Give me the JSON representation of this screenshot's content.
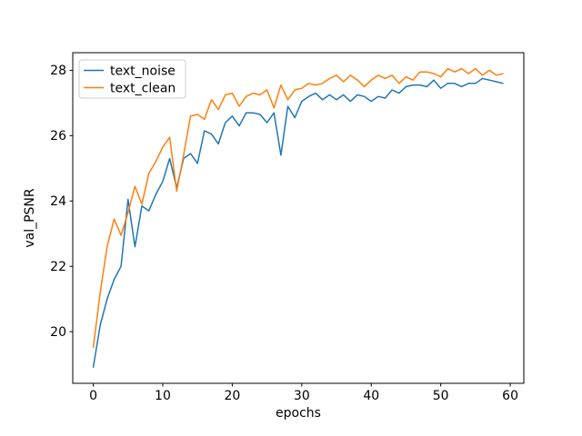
{
  "window": {
    "background": "#ffffff"
  },
  "chart_data": {
    "type": "line",
    "title": "",
    "xlabel": "epochs",
    "ylabel": "val_PSNR",
    "xlim": [
      -2.95,
      61.95
    ],
    "ylim": [
      18.42,
      28.54
    ],
    "xticks": [
      0,
      10,
      20,
      30,
      40,
      50,
      60
    ],
    "yticks": [
      20,
      22,
      24,
      26,
      28
    ],
    "grid": false,
    "legend_position": "upper left",
    "x": [
      0,
      1,
      2,
      3,
      4,
      5,
      6,
      7,
      8,
      9,
      10,
      11,
      12,
      13,
      14,
      15,
      16,
      17,
      18,
      19,
      20,
      21,
      22,
      23,
      24,
      25,
      26,
      27,
      28,
      29,
      30,
      31,
      32,
      33,
      34,
      35,
      36,
      37,
      38,
      39,
      40,
      41,
      42,
      43,
      44,
      45,
      46,
      47,
      48,
      49,
      50,
      51,
      52,
      53,
      54,
      55,
      56,
      57,
      58,
      59
    ],
    "series": [
      {
        "name": "text_noise",
        "color": "#1f77b4",
        "values": [
          18.9,
          20.2,
          21.0,
          21.6,
          22.0,
          24.05,
          22.6,
          23.85,
          23.7,
          24.2,
          24.6,
          25.3,
          24.4,
          25.3,
          25.45,
          25.15,
          26.15,
          26.05,
          25.75,
          26.4,
          26.6,
          26.3,
          26.7,
          26.7,
          26.65,
          26.4,
          26.7,
          25.4,
          26.9,
          26.55,
          27.05,
          27.2,
          27.3,
          27.1,
          27.25,
          27.1,
          27.25,
          27.05,
          27.25,
          27.2,
          27.05,
          27.2,
          27.15,
          27.4,
          27.3,
          27.5,
          27.55,
          27.55,
          27.5,
          27.7,
          27.45,
          27.6,
          27.6,
          27.5,
          27.6,
          27.6,
          27.75,
          27.7,
          27.65,
          27.6
        ]
      },
      {
        "name": "text_clean",
        "color": "#ff7f0e",
        "values": [
          19.5,
          21.2,
          22.6,
          23.45,
          22.95,
          23.65,
          24.45,
          23.9,
          24.85,
          25.2,
          25.65,
          25.95,
          24.3,
          25.4,
          26.6,
          26.65,
          26.5,
          27.1,
          26.8,
          27.25,
          27.3,
          26.9,
          27.2,
          27.3,
          27.25,
          27.4,
          26.85,
          27.55,
          27.1,
          27.4,
          27.45,
          27.6,
          27.55,
          27.6,
          27.75,
          27.85,
          27.65,
          27.85,
          27.7,
          27.5,
          27.7,
          27.85,
          27.75,
          27.85,
          27.6,
          27.8,
          27.7,
          27.95,
          27.95,
          27.9,
          27.8,
          28.05,
          27.95,
          28.05,
          27.9,
          28.05,
          27.85,
          28.0,
          27.85,
          27.9
        ]
      }
    ]
  },
  "legend": {
    "items": [
      {
        "label": "text_noise",
        "color": "#1f77b4"
      },
      {
        "label": "text_clean",
        "color": "#ff7f0e"
      }
    ]
  },
  "axes": {
    "xlabel": "epochs",
    "ylabel": "val_PSNR",
    "spine_color": "#000000",
    "line_width": 1.5
  }
}
